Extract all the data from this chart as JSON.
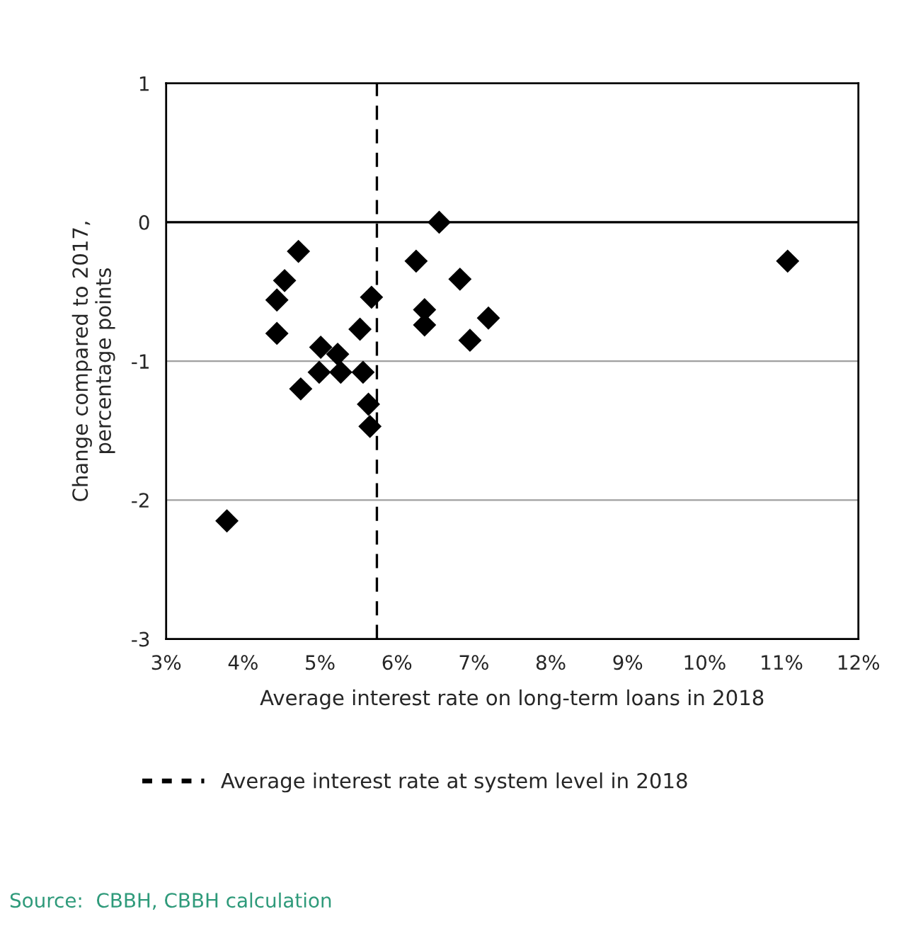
{
  "chart_data": {
    "type": "scatter",
    "xlabel": "Average interest rate on long-term loans in 2018",
    "ylabel": "Change compared to 2017,\npercentage points",
    "x": [
      4.72,
      4.54,
      4.44,
      4.44,
      5.01,
      5.23,
      4.99,
      5.27,
      5.56,
      5.52,
      5.67,
      4.75,
      5.63,
      5.65,
      6.25,
      6.55,
      6.36,
      6.36,
      6.82,
      7.19,
      6.95,
      3.79,
      11.08
    ],
    "series": [
      {
        "color": "#000000",
        "values": [
          -0.21,
          -0.42,
          -0.56,
          -0.8,
          -0.9,
          -0.95,
          -1.08,
          -1.08,
          -1.08,
          -0.77,
          -0.54,
          -1.2,
          -1.31,
          -1.47,
          -0.28,
          0.0,
          -0.63,
          -0.74,
          -0.41,
          -0.69,
          -0.85,
          -2.15,
          -0.28
        ]
      }
    ],
    "marker": "diamond",
    "xlim": [
      3,
      12
    ],
    "xticks": [
      {
        "value": 3,
        "label": "3%"
      },
      {
        "value": 4,
        "label": "4%"
      },
      {
        "value": 5,
        "label": "5%"
      },
      {
        "value": 6,
        "label": "6%"
      },
      {
        "value": 7,
        "label": "7%"
      },
      {
        "value": 8,
        "label": "8%"
      },
      {
        "value": 9,
        "label": "9%"
      },
      {
        "value": 10,
        "label": "10%"
      },
      {
        "value": 11,
        "label": "11%"
      },
      {
        "value": 12,
        "label": "12%"
      }
    ],
    "ylim": [
      -3,
      1
    ],
    "yticks": [
      1,
      0,
      -1,
      -2,
      -3
    ],
    "grid": "y",
    "ref_lines": [
      {
        "axis": "x",
        "value": 5.74,
        "label": "Average interest rate at system level in 2018",
        "color": "#000000",
        "line_style": "dashed"
      },
      {
        "axis": "y",
        "value": 0,
        "color": "#000000",
        "line_style": "solid"
      }
    ],
    "legend": "bottom",
    "annotations": [
      "Source:  CBBH, CBBH calculation"
    ]
  }
}
